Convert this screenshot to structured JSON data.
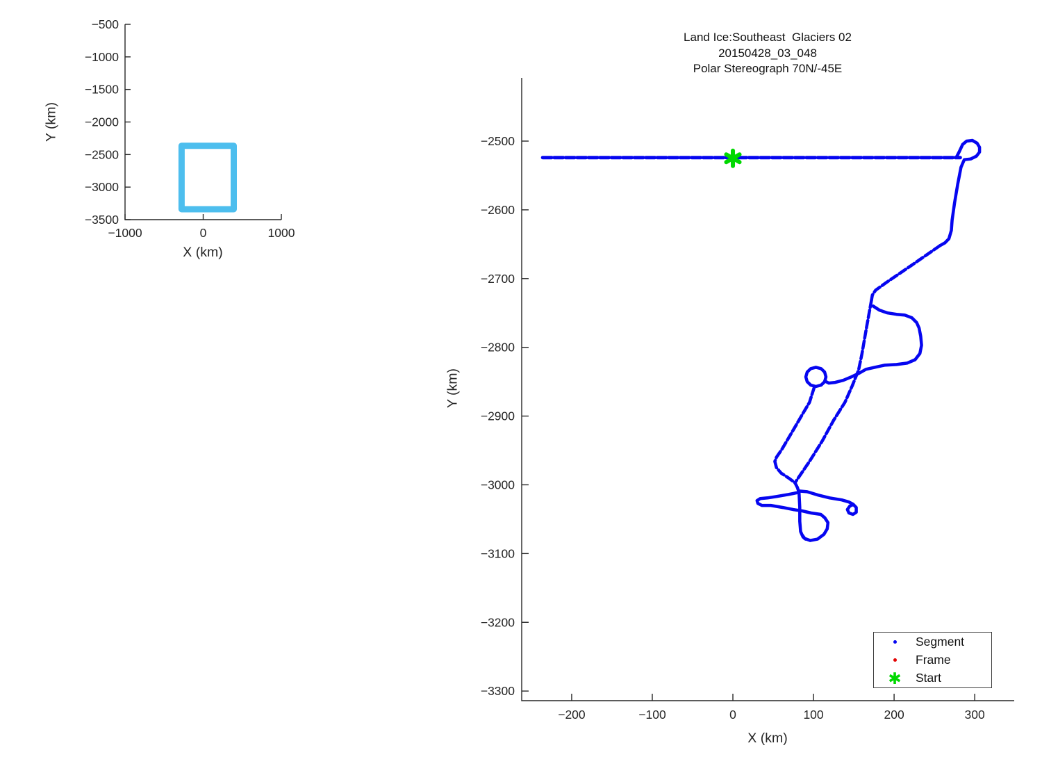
{
  "colors": {
    "track": "#0606f0",
    "frame": "#e30202",
    "start": "#00d800",
    "coverage": "#4dbeee",
    "text": "#262626"
  },
  "chart_data": [
    {
      "id": "overview",
      "type": "line",
      "title": [],
      "xlabel": "X (km)",
      "ylabel": "Y (km)",
      "xlim": [
        -1000,
        1000
      ],
      "ylim": [
        -3500,
        -500
      ],
      "xticks": [
        -1000,
        0,
        1000
      ],
      "yticks": [
        -500,
        -1000,
        -1500,
        -2000,
        -2500,
        -3000,
        -3500
      ],
      "grid": false,
      "series": [
        {
          "name": "coverage-box-outline",
          "color": "#4dbeee",
          "width": 9,
          "dash": null,
          "points": [
            [
              -276,
              -2365
            ],
            [
              391,
              -2365
            ],
            [
              391,
              -3340
            ],
            [
              -276,
              -3340
            ],
            [
              -276,
              -2365
            ]
          ]
        }
      ]
    },
    {
      "id": "main",
      "type": "line",
      "title": [
        "Land Ice:Southeast  Glaciers 02",
        "20150428_03_048",
        "Polar Stereograph 70N/-45E"
      ],
      "xlabel": "X (km)",
      "ylabel": "Y (km)",
      "xlim": [
        -262,
        349
      ],
      "ylim": [
        -3314,
        -2408
      ],
      "xticks": [
        -200,
        -100,
        0,
        100,
        200,
        300
      ],
      "yticks": [
        -2500,
        -2600,
        -2700,
        -2800,
        -2900,
        -3000,
        -3100,
        -3200,
        -3300
      ],
      "grid": false,
      "legend": {
        "position": "bottom-right",
        "items": [
          {
            "label": "Segment",
            "marker": "dot",
            "color": "#0606f0"
          },
          {
            "label": "Frame",
            "marker": "dot",
            "color": "#e30202"
          },
          {
            "label": "Start",
            "marker": "asterisk",
            "color": "#00d800"
          }
        ]
      },
      "start_marker": {
        "x": 0,
        "y": -2525,
        "color": "#00d800"
      },
      "series": [
        {
          "name": "track-top-line",
          "color": "#0606f0",
          "width": 5,
          "dash": "13 3.5",
          "points": [
            [
              -236,
              -2524
            ],
            [
              282,
              -2524
            ]
          ]
        },
        {
          "name": "track-ne-turn-loop",
          "color": "#0606f0",
          "width": 4.5,
          "dash": null,
          "points": [
            [
              277,
              -2524
            ],
            [
              281,
              -2515
            ],
            [
              285,
              -2505
            ],
            [
              290,
              -2500
            ],
            [
              297,
              -2499
            ],
            [
              303,
              -2503
            ],
            [
              306,
              -2509
            ],
            [
              306,
              -2516
            ],
            [
              302,
              -2522
            ],
            [
              295,
              -2526
            ],
            [
              287,
              -2527
            ],
            [
              283,
              -2538
            ],
            [
              279,
              -2562
            ],
            [
              275,
              -2590
            ],
            [
              272,
              -2615
            ],
            [
              271,
              -2630
            ],
            [
              268,
              -2642
            ],
            [
              263,
              -2648
            ],
            [
              257,
              -2652
            ]
          ]
        },
        {
          "name": "track-diagonal-sw",
          "color": "#0606f0",
          "width": 4.5,
          "dash": "11 4",
          "points": [
            [
              257,
              -2652
            ],
            [
              220,
              -2682
            ],
            [
              190,
              -2706
            ],
            [
              177,
              -2717
            ],
            [
              173,
              -2724
            ],
            [
              172,
              -2731
            ]
          ]
        },
        {
          "name": "track-long-line-a",
          "color": "#0606f0",
          "width": 4.5,
          "dash": "11 4",
          "points": [
            [
              172,
              -2731
            ],
            [
              166,
              -2770
            ],
            [
              160,
              -2810
            ],
            [
              156,
              -2833
            ],
            [
              148,
              -2856
            ],
            [
              139,
              -2880
            ],
            [
              125,
              -2906
            ],
            [
              111,
              -2936
            ],
            [
              95,
              -2966
            ],
            [
              77,
              -2997
            ]
          ]
        },
        {
          "name": "track-east-loop",
          "color": "#0606f0",
          "width": 4.5,
          "dash": null,
          "points": [
            [
              174,
              -2740
            ],
            [
              182,
              -2746
            ],
            [
              192,
              -2750
            ],
            [
              203,
              -2752
            ],
            [
              213,
              -2753
            ],
            [
              222,
              -2757
            ],
            [
              228,
              -2764
            ],
            [
              231,
              -2772
            ],
            [
              233,
              -2784
            ],
            [
              234,
              -2797
            ],
            [
              232,
              -2809
            ],
            [
              226,
              -2818
            ],
            [
              216,
              -2823
            ],
            [
              203,
              -2825
            ],
            [
              188,
              -2826
            ],
            [
              176,
              -2829
            ],
            [
              165,
              -2832
            ],
            [
              156,
              -2838
            ],
            [
              147,
              -2843
            ],
            [
              137,
              -2848
            ],
            [
              127,
              -2851
            ],
            [
              119,
              -2852
            ],
            [
              114,
              -2849
            ]
          ]
        },
        {
          "name": "track-turn-circle",
          "color": "#0606f0",
          "width": 4.5,
          "dash": null,
          "points": [
            [
              115.5,
              -2843
            ],
            [
              113.8,
              -2836
            ],
            [
              109.3,
              -2831
            ],
            [
              103,
              -2829
            ],
            [
              96.7,
              -2831
            ],
            [
              92.2,
              -2836
            ],
            [
              90.5,
              -2843
            ],
            [
              92.2,
              -2850
            ],
            [
              96.7,
              -2855
            ],
            [
              103,
              -2857
            ],
            [
              109.3,
              -2855
            ],
            [
              113.8,
              -2850
            ],
            [
              115.5,
              -2843
            ]
          ]
        },
        {
          "name": "track-long-line-b",
          "color": "#0606f0",
          "width": 4.5,
          "dash": "11 4",
          "points": [
            [
              101,
              -2858
            ],
            [
              95,
              -2880
            ],
            [
              84,
              -2902
            ],
            [
              72,
              -2926
            ],
            [
              61,
              -2948
            ],
            [
              54,
              -2960
            ],
            [
              52,
              -2966
            ],
            [
              54,
              -2975
            ],
            [
              60,
              -2983
            ],
            [
              69,
              -2990
            ],
            [
              77,
              -2997
            ]
          ]
        },
        {
          "name": "track-stem",
          "color": "#0606f0",
          "width": 4.5,
          "dash": null,
          "points": [
            [
              77,
              -2997
            ],
            [
              80,
              -3004
            ],
            [
              82,
              -3011
            ],
            [
              83,
              -3033
            ],
            [
              83,
              -3053
            ],
            [
              84,
              -3068
            ],
            [
              87,
              -3076
            ],
            [
              90,
              -3079
            ]
          ]
        },
        {
          "name": "track-west-hairpin-and-bulge",
          "color": "#0606f0",
          "width": 4.5,
          "dash": null,
          "points": [
            [
              82,
              -3011
            ],
            [
              69,
              -3014
            ],
            [
              54,
              -3017
            ],
            [
              43,
              -3019
            ],
            [
              34,
              -3020
            ],
            [
              30,
              -3023
            ],
            [
              31,
              -3027
            ],
            [
              36,
              -3030
            ],
            [
              47,
              -3030
            ],
            [
              62,
              -3033
            ],
            [
              75,
              -3036
            ],
            [
              86,
              -3038
            ],
            [
              97,
              -3041
            ],
            [
              109,
              -3043
            ],
            [
              114,
              -3048
            ],
            [
              118,
              -3055
            ],
            [
              117,
              -3064
            ],
            [
              113,
              -3072
            ],
            [
              105,
              -3079
            ],
            [
              96,
              -3081
            ],
            [
              89,
              -3078
            ],
            [
              86,
              -3073
            ]
          ]
        },
        {
          "name": "track-east-spur-hook",
          "color": "#0606f0",
          "width": 4.5,
          "dash": null,
          "points": [
            [
              82,
              -3009
            ],
            [
              92,
              -3010
            ],
            [
              106,
              -3015
            ],
            [
              120,
              -3019
            ],
            [
              135,
              -3022
            ],
            [
              144,
              -3025
            ],
            [
              149,
              -3028
            ],
            [
              153,
              -3033
            ],
            [
              153,
              -3040
            ],
            [
              149,
              -3043
            ],
            [
              144,
              -3041
            ],
            [
              142,
              -3036
            ],
            [
              145,
              -3031
            ],
            [
              149,
              -3029
            ]
          ]
        }
      ]
    }
  ]
}
